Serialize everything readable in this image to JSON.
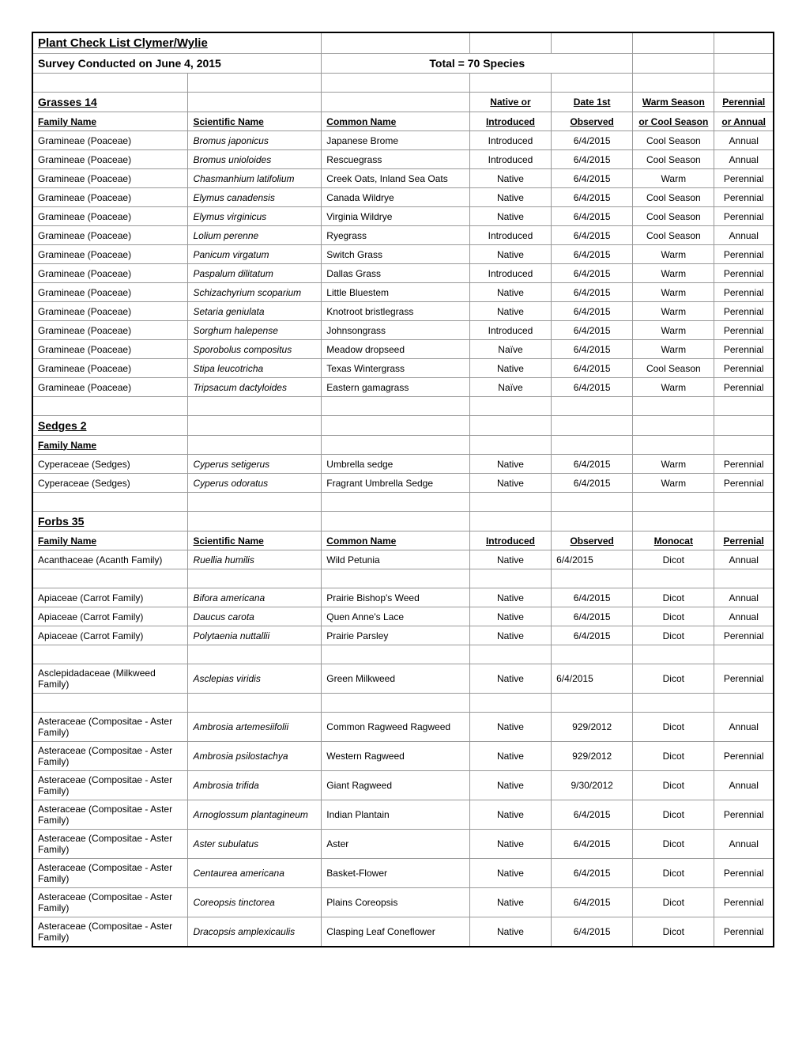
{
  "title": "Plant Check List Clymer/Wylie",
  "subtitle": "Survey Conducted on June 4, 2015",
  "total": "Total = 70 Species",
  "grasses_header": "Grasses  14",
  "sedges_header": "Sedges  2",
  "forbs_header": "Forbs  35",
  "headers": {
    "family": "Family Name",
    "scientific": "Scientific Name",
    "common": "Common Name",
    "native_or": "Native or",
    "introduced": "Introduced",
    "date_1st": "Date 1st",
    "observed": "Observed",
    "warm_season": "Warm Season",
    "or_cool": "or Cool Season",
    "monocat": "Monocat",
    "perennial": "Perennial",
    "or_annual": "or Annual",
    "perrenial": "Perrenial"
  },
  "grasses": [
    {
      "family": "Gramineae (Poaceae)",
      "sci": "Bromus japonicus",
      "common": "Japanese Brome",
      "native": "Introduced",
      "date": "6/4/2015",
      "season": "Cool Season",
      "type": "Annual"
    },
    {
      "family": "Gramineae (Poaceae)",
      "sci": "Bromus unioloides",
      "common": "Rescuegrass",
      "native": "Introduced",
      "date": "6/4/2015",
      "season": "Cool Season",
      "type": "Annual"
    },
    {
      "family": "Gramineae (Poaceae)",
      "sci": "Chasmanhium latifolium",
      "common": "Creek Oats, Inland Sea Oats",
      "native": "Native",
      "date": "6/4/2015",
      "season": "Warm",
      "type": "Perennial"
    },
    {
      "family": "Gramineae (Poaceae)",
      "sci": "Elymus canadensis",
      "common": "Canada Wildrye",
      "native": "Native",
      "date": "6/4/2015",
      "season": "Cool Season",
      "type": "Perennial"
    },
    {
      "family": "Gramineae (Poaceae)",
      "sci": "Elymus virginicus",
      "common": "Virginia Wildrye",
      "native": "Native",
      "date": "6/4/2015",
      "season": "Cool Season",
      "type": "Perennial"
    },
    {
      "family": "Gramineae (Poaceae)",
      "sci": "Lolium perenne",
      "common": "Ryegrass",
      "native": "Introduced",
      "date": "6/4/2015",
      "season": "Cool Season",
      "type": "Annual"
    },
    {
      "family": "Gramineae (Poaceae)",
      "sci": "Panicum virgatum",
      "common": "Switch Grass",
      "native": "Native",
      "date": "6/4/2015",
      "season": "Warm",
      "type": "Perennial"
    },
    {
      "family": "Gramineae (Poaceae)",
      "sci": "Paspalum dilitatum",
      "common": "Dallas Grass",
      "native": "Introduced",
      "date": "6/4/2015",
      "season": "Warm",
      "type": "Perennial"
    },
    {
      "family": "Gramineae (Poaceae)",
      "sci": "Schizachyrium scoparium",
      "common": "Little Bluestem",
      "native": "Native",
      "date": "6/4/2015",
      "season": "Warm",
      "type": "Perennial"
    },
    {
      "family": "Gramineae (Poaceae)",
      "sci": "Setaria geniulata",
      "common": "Knotroot bristlegrass",
      "native": "Native",
      "date": "6/4/2015",
      "season": "Warm",
      "type": "Perennial"
    },
    {
      "family": "Gramineae (Poaceae)",
      "sci": "Sorghum halepense",
      "common": "Johnsongrass",
      "native": "Introduced",
      "date": "6/4/2015",
      "season": "Warm",
      "type": "Perennial"
    },
    {
      "family": "Gramineae (Poaceae)",
      "sci": "Sporobolus compositus",
      "common": "Meadow dropseed",
      "native": "Naïve",
      "date": "6/4/2015",
      "season": "Warm",
      "type": "Perennial"
    },
    {
      "family": "Gramineae (Poaceae)",
      "sci": "Stipa leucotricha",
      "common": "Texas Wintergrass",
      "native": "Native",
      "date": "6/4/2015",
      "season": "Cool Season",
      "type": "Perennial"
    },
    {
      "family": "Gramineae (Poaceae)",
      "sci": "Tripsacum dactyloides",
      "common": "Eastern gamagrass",
      "native": "Naïve",
      "date": "6/4/2015",
      "season": "Warm",
      "type": "Perennial"
    }
  ],
  "sedges": [
    {
      "family": "Cyperaceae (Sedges)",
      "sci": "Cyperus setigerus",
      "common": "Umbrella sedge",
      "native": "Native",
      "date": "6/4/2015",
      "season": "Warm",
      "type": "Perennial"
    },
    {
      "family": "Cyperaceae (Sedges)",
      "sci": "Cyperus odoratus",
      "common": "Fragrant Umbrella Sedge",
      "native": "Native",
      "date": "6/4/2015",
      "season": "Warm",
      "type": "Perennial"
    }
  ],
  "forbs": [
    {
      "family": "Acanthaceae (Acanth Family)",
      "sci": "Ruellia humilis",
      "common": "Wild Petunia",
      "native": "Native",
      "date": "6/4/2015",
      "season": "Dicot",
      "type": "Annual",
      "native_align": "center",
      "date_align": "left"
    },
    {
      "blank": true
    },
    {
      "family": "Apiaceae (Carrot Family)",
      "sci": "Bifora americana",
      "common": "Prairie Bishop's Weed",
      "native": "Native",
      "date": "6/4/2015",
      "season": "Dicot",
      "type": "Annual",
      "native_align": "center",
      "date_align": "center"
    },
    {
      "family": "Apiaceae (Carrot Family)",
      "sci": "Daucus carota",
      "common": "Quen Anne's Lace",
      "native": "Native",
      "date": "6/4/2015",
      "season": "Dicot",
      "type": "Annual",
      "native_align": "center",
      "date_align": "center"
    },
    {
      "family": "Apiaceae (Carrot Family)",
      "sci": "Polytaenia nuttallii",
      "common": "Prairie Parsley",
      "native": "Native",
      "date": "6/4/2015",
      "season": "Dicot",
      "type": "Perennial",
      "native_align": "center",
      "date_align": "center"
    },
    {
      "blank": true
    },
    {
      "family": "Asclepidadaceae (Milkweed Family)",
      "sci": "Asclepias viridis",
      "common": "Green Milkweed",
      "native": "Native",
      "date": "6/4/2015",
      "season": "Dicot",
      "type": "Perennial",
      "native_align": "center",
      "date_align": "left"
    },
    {
      "blank": true
    },
    {
      "family": "Asteraceae (Compositae - Aster Family)",
      "sci": "Ambrosia artemesiifolii",
      "common": "Common Ragweed Ragweed",
      "native": "Native",
      "date": "929/2012",
      "season": "Dicot",
      "type": "Annual",
      "native_align": "center",
      "date_align": "center"
    },
    {
      "family": "Asteraceae (Compositae - Aster Family)",
      "sci": "Ambrosia psilostachya",
      "common": "Western Ragweed",
      "native": "Native",
      "date": "929/2012",
      "season": "Dicot",
      "type": "Perennial",
      "native_align": "center",
      "date_align": "center"
    },
    {
      "family": "Asteraceae (Compositae - Aster Family)",
      "sci": "Ambrosia trifida",
      "common": "Giant Ragweed",
      "native": "Native",
      "date": "9/30/2012",
      "season": "Dicot",
      "type": "Annual",
      "native_align": "center",
      "date_align": "center"
    },
    {
      "family": "Asteraceae (Compositae - Aster Family)",
      "sci": "Arnoglossum plantagineum",
      "common": "Indian Plantain",
      "native": "Native",
      "date": "6/4/2015",
      "season": "Dicot",
      "type": "Perennial",
      "native_align": "center",
      "date_align": "center"
    },
    {
      "family": "Asteraceae (Compositae - Aster Family)",
      "sci": "Aster subulatus",
      "common": "Aster",
      "native": "Native",
      "date": "6/4/2015",
      "season": "Dicot",
      "type": "Annual",
      "native_align": "center",
      "date_align": "center"
    },
    {
      "family": "Asteraceae (Compositae - Aster Family)",
      "sci": "Centaurea americana",
      "common": "Basket-Flower",
      "native": "Native",
      "date": "6/4/2015",
      "season": "Dicot",
      "type": "Perennial",
      "native_align": "center",
      "date_align": "center"
    },
    {
      "family": "Asteraceae (Compositae - Aster Family)",
      "sci": "Coreopsis tinctorea",
      "common": "Plains Coreopsis",
      "native": "Native",
      "date": "6/4/2015",
      "season": "Dicot",
      "type": "Perennial",
      "native_align": "center",
      "date_align": "center"
    },
    {
      "family": "Asteraceae (Compositae - Aster Family)",
      "sci": "Dracopsis amplexicaulis",
      "common": "Clasping Leaf Coneflower",
      "native": "Native",
      "date": "6/4/2015",
      "season": "Dicot",
      "type": "Perennial",
      "native_align": "center",
      "date_align": "center"
    }
  ]
}
